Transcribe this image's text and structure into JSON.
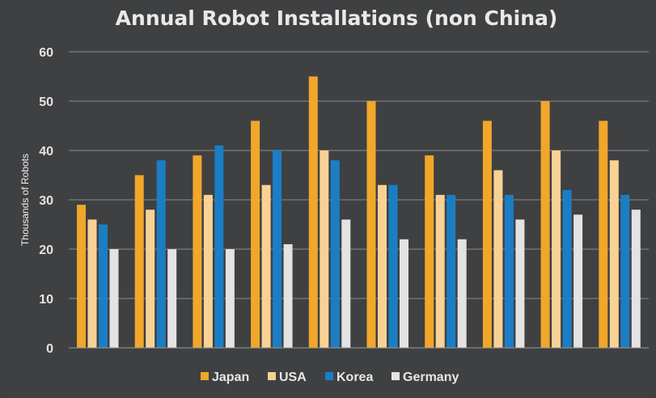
{
  "chart_data": {
    "type": "bar",
    "title": "Annual Robot Installations (non China)",
    "xlabel": "",
    "ylabel": "Thousands of Robots",
    "ylim": [
      0,
      60
    ],
    "yticks": [
      0,
      10,
      20,
      30,
      40,
      50,
      60
    ],
    "grid": true,
    "legend_position": "bottom",
    "categories": [
      "",
      "",
      "",
      "",
      "",
      "",
      "",
      "",
      "",
      ""
    ],
    "series": [
      {
        "name": "Japan",
        "color": "#f0a72a",
        "values": [
          29,
          35,
          39,
          46,
          55,
          50,
          39,
          46,
          50,
          46
        ]
      },
      {
        "name": "USA",
        "color": "#f8d294",
        "values": [
          26,
          28,
          31,
          33,
          40,
          33,
          31,
          36,
          40,
          38
        ]
      },
      {
        "name": "Korea",
        "color": "#1b7ec5",
        "values": [
          25,
          38,
          41,
          40,
          38,
          33,
          31,
          31,
          32,
          31
        ]
      },
      {
        "name": "Germany",
        "color": "#e3e3e3",
        "values": [
          20,
          20,
          20,
          21,
          26,
          22,
          22,
          26,
          27,
          28
        ]
      }
    ]
  }
}
